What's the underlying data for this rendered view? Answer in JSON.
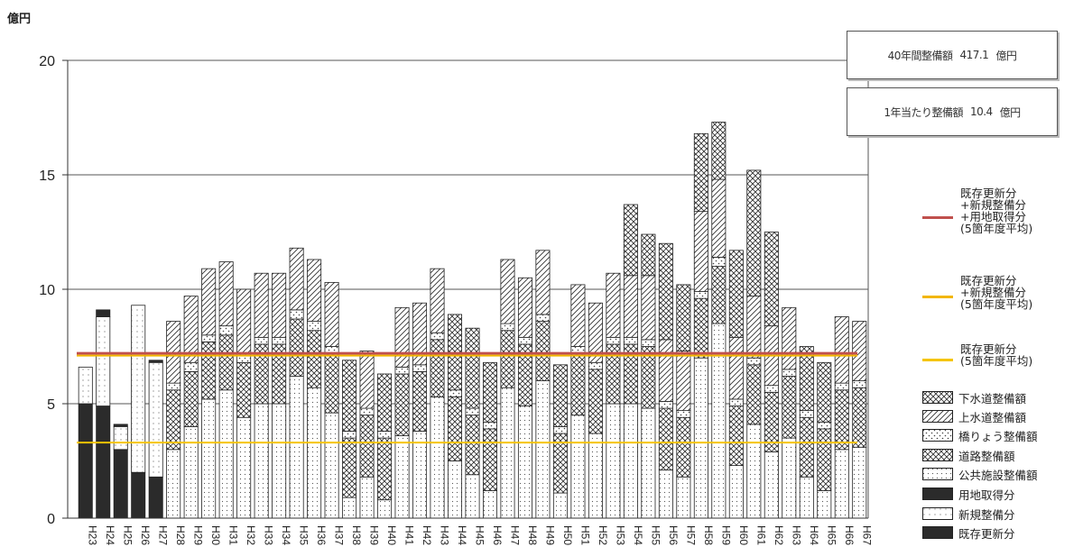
{
  "unit_label": "億円",
  "info_boxes": {
    "total_label": "40年間整備額",
    "total_value": "417.1",
    "total_unit": "億円",
    "annual_label": "1年当たり整備額",
    "annual_value": "10.4",
    "annual_unit": "億円"
  },
  "legend": {
    "lines": [
      {
        "label": "既存更新分\n+新規整備分\n+用地取得分\n(5箇年度平均)",
        "color": "#c0504d"
      },
      {
        "label": "既存更新分\n+新規整備分\n(5箇年度平均)",
        "color": "#f2b600"
      },
      {
        "label": "既存更新分\n(5箇年度平均)",
        "color": "#f5c400"
      }
    ],
    "patterns": [
      {
        "label": "下水道整備額",
        "pattern": "crosshatch"
      },
      {
        "label": "上水道整備額",
        "pattern": "diagonal"
      },
      {
        "label": "橋りょう整備額",
        "pattern": "dots-sparse"
      },
      {
        "label": "道路整備額",
        "pattern": "crosshatch"
      },
      {
        "label": "公共施設整備額",
        "pattern": "dots"
      },
      {
        "label": "用地取得分",
        "pattern": "solid-dark"
      },
      {
        "label": "新規整備分",
        "pattern": "dots-light"
      },
      {
        "label": "既存更新分",
        "pattern": "solid-dark"
      }
    ]
  },
  "chart_data": {
    "type": "bar",
    "stacked": true,
    "ylim": [
      0,
      20
    ],
    "yticks": [
      0,
      5,
      10,
      15,
      20
    ],
    "grid": true,
    "categories": [
      "H23",
      "H24",
      "H25",
      "H26",
      "H27",
      "H28",
      "H29",
      "H30",
      "H31",
      "H32",
      "H33",
      "H34",
      "H35",
      "H36",
      "H37",
      "H38",
      "H39",
      "H40",
      "H41",
      "H42",
      "H43",
      "H44",
      "H45",
      "H46",
      "H47",
      "H48",
      "H49",
      "H50",
      "H51",
      "H52",
      "H53",
      "H54",
      "H55",
      "H56",
      "H57",
      "H58",
      "H59",
      "H60",
      "H61",
      "H62",
      "H63",
      "H64",
      "H65",
      "H66",
      "H67"
    ],
    "series": [
      {
        "name": "既存更新分",
        "pattern": "solid-dark",
        "values": [
          5.0,
          4.9,
          3.0,
          2.0,
          1.8,
          0,
          0,
          0,
          0,
          0,
          0,
          0,
          0,
          0,
          0,
          0,
          0,
          0,
          0,
          0,
          0,
          0,
          0,
          0,
          0,
          0,
          0,
          0,
          0,
          0,
          0,
          0,
          0,
          0,
          0,
          0,
          0,
          0,
          0,
          0,
          0,
          0,
          0,
          0,
          0
        ]
      },
      {
        "name": "新規整備分",
        "pattern": "dots-light",
        "values": [
          1.6,
          3.9,
          1.0,
          7.3,
          5.0,
          0,
          0,
          0,
          0,
          0,
          0,
          0,
          0,
          0,
          0,
          0,
          0,
          0,
          0,
          0,
          0,
          0,
          0,
          0,
          0,
          0,
          0,
          0,
          0,
          0,
          0,
          0,
          0,
          0,
          0,
          0,
          0,
          0,
          0,
          0,
          0,
          0,
          0,
          0,
          0
        ]
      },
      {
        "name": "用地取得分",
        "pattern": "solid-dark",
        "values": [
          0,
          0.3,
          0.1,
          0,
          0.1,
          0,
          0,
          0,
          0,
          0,
          0,
          0,
          0,
          0,
          0,
          0,
          0,
          0,
          0,
          0,
          0,
          0,
          0,
          0,
          0,
          0,
          0,
          0,
          0,
          0,
          0,
          0,
          0,
          0,
          0,
          0,
          0,
          0,
          0,
          0,
          0,
          0,
          0,
          0,
          0
        ]
      },
      {
        "name": "公共施設整備額",
        "pattern": "dots",
        "values": [
          0,
          0,
          0,
          0,
          0,
          3.0,
          4.0,
          5.2,
          5.6,
          4.4,
          5.0,
          5.0,
          6.2,
          5.7,
          4.6,
          0.9,
          1.8,
          0.8,
          3.6,
          3.8,
          5.3,
          2.5,
          1.9,
          1.2,
          5.7,
          4.9,
          6.0,
          1.1,
          4.5,
          3.7,
          5.0,
          5.0,
          4.8,
          2.1,
          1.8,
          7.0,
          8.5,
          2.3,
          4.1,
          2.9,
          3.5,
          1.8,
          1.2,
          3.0,
          3.1
        ]
      },
      {
        "name": "道路整備額",
        "pattern": "crosshatch",
        "values": [
          0,
          0,
          0,
          0,
          0,
          2.6,
          2.4,
          2.5,
          2.4,
          2.4,
          2.6,
          2.6,
          2.5,
          2.5,
          2.6,
          2.6,
          2.7,
          2.7,
          2.7,
          2.6,
          2.5,
          2.8,
          2.6,
          2.7,
          2.5,
          2.7,
          2.6,
          2.6,
          2.7,
          2.8,
          2.6,
          2.6,
          2.7,
          2.7,
          2.6,
          2.6,
          2.5,
          2.6,
          2.6,
          2.6,
          2.7,
          2.6,
          2.7,
          2.6,
          2.6
        ]
      },
      {
        "name": "橋りょう整備額",
        "pattern": "dots-sparse",
        "values": [
          0,
          0,
          0,
          0,
          0,
          0.3,
          0.4,
          0.3,
          0.4,
          0.3,
          0.3,
          0.3,
          0.4,
          0.4,
          0.3,
          0.3,
          0.3,
          0.3,
          0.3,
          0.3,
          0.3,
          0.3,
          0.3,
          0.3,
          0.3,
          0.3,
          0.3,
          0.3,
          0.3,
          0.3,
          0.3,
          0.3,
          0.3,
          0.3,
          0.3,
          0.3,
          0.4,
          0.3,
          0.3,
          0.3,
          0.3,
          0.3,
          0.3,
          0.3,
          0.3
        ]
      },
      {
        "name": "上水道整備額",
        "pattern": "diagonal",
        "values": [
          0,
          0,
          0,
          0,
          0,
          2.7,
          2.9,
          2.9,
          2.8,
          2.9,
          2.8,
          2.8,
          2.7,
          2.7,
          2.8,
          0,
          2.5,
          0,
          2.6,
          2.7,
          2.8,
          0,
          0,
          0,
          2.8,
          2.6,
          2.8,
          0,
          2.7,
          2.6,
          2.8,
          2.7,
          2.8,
          2.7,
          2.6,
          3.5,
          3.4,
          2.7,
          2.7,
          2.6,
          2.7,
          0,
          0,
          2.9,
          2.6
        ]
      },
      {
        "name": "下水道整備額",
        "pattern": "crosshatch",
        "values": [
          0,
          0,
          0,
          0,
          0,
          0,
          0,
          0,
          0,
          0,
          0,
          0,
          0,
          0,
          0,
          3.1,
          0,
          2.5,
          0,
          0,
          0,
          3.3,
          3.5,
          2.6,
          0,
          0,
          0,
          2.7,
          0,
          0,
          0,
          3.1,
          1.8,
          4.2,
          2.9,
          3.4,
          2.5,
          3.8,
          5.5,
          4.1,
          0,
          2.8,
          2.6,
          0,
          0
        ]
      }
    ],
    "reference_lines": [
      {
        "name": "既存更新分+新規整備分+用地取得分(5箇年度平均)",
        "y": 7.2,
        "color": "#c0504d"
      },
      {
        "name": "既存更新分+新規整備分(5箇年度平均)",
        "y": 7.1,
        "color": "#f2b600"
      },
      {
        "name": "既存更新分(5箇年度平均)",
        "y": 3.3,
        "color": "#f5c400"
      }
    ]
  }
}
